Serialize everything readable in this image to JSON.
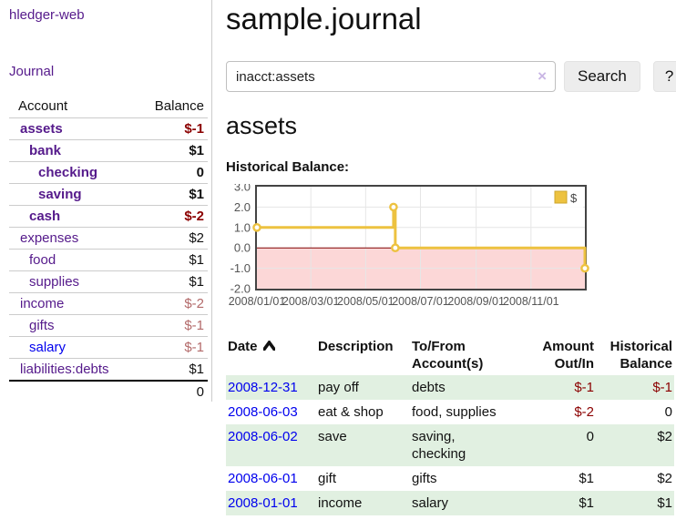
{
  "colors": {
    "link_purple": "#551A8B",
    "link_blue": "#0000EE",
    "negative_strong": "#8B0000",
    "negative_dim": "#B36A6A",
    "row_stripe_green": "#E1F0E1",
    "button_gray": "#EDEDED"
  },
  "sidebar": {
    "app_title": "hledger-web",
    "journal_link": "Journal",
    "accounts_table": {
      "account_header": "Account",
      "balance_header": "Balance",
      "rows": [
        {
          "name": "assets",
          "balance": "$-1"
        },
        {
          "name": "bank",
          "balance": "$1"
        },
        {
          "name": "checking",
          "balance": "0"
        },
        {
          "name": "saving",
          "balance": "$1"
        },
        {
          "name": "cash",
          "balance": "$-2"
        },
        {
          "name": "expenses",
          "balance": "$2"
        },
        {
          "name": "food",
          "balance": "$1"
        },
        {
          "name": "supplies",
          "balance": "$1"
        },
        {
          "name": "income",
          "balance": "$-2"
        },
        {
          "name": "gifts",
          "balance": "$-1"
        },
        {
          "name": "salary",
          "balance": "$-1"
        },
        {
          "name": "liabilities:debts",
          "balance": "$1"
        }
      ],
      "total": "0"
    }
  },
  "main": {
    "page_title": "sample.journal",
    "search": {
      "value": "inacct:assets",
      "clear_icon": "×",
      "search_button": "Search",
      "help_button": "?"
    },
    "account_heading": "assets",
    "chart_title": "Historical Balance:"
  },
  "chart_data": {
    "type": "line",
    "title": "Historical Balance:",
    "style": "steps",
    "series": [
      {
        "name": "$",
        "color": "#EDC240",
        "points": [
          [
            "2008-01-01",
            1
          ],
          [
            "2008-06-01",
            2
          ],
          [
            "2008-06-03",
            0
          ],
          [
            "2008-12-31",
            -1
          ]
        ]
      }
    ],
    "xlim": [
      "2008-01-01",
      "2008-12-31"
    ],
    "ylim": [
      -2,
      3
    ],
    "x_ticks": [
      "2008/01/01",
      "2008/03/01",
      "2008/05/01",
      "2008/07/01",
      "2008/09/01",
      "2008/11/01"
    ],
    "y_ticks": [
      3.0,
      2.0,
      1.0,
      0.0,
      -1.0,
      -2.0
    ],
    "grid": true,
    "legend_position": "top-right",
    "negative_region_fill": "#FCD7D7",
    "zero_line_color": "#800000",
    "border_color": "#444444",
    "grid_color": "#E6E6E6",
    "tick_label_color": "#545454"
  },
  "register": {
    "headers": {
      "date": "Date",
      "description": "Description",
      "tofrom_line1": "To/From",
      "tofrom_line2": "Account(s)",
      "amount_line1": "Amount",
      "amount_line2": "Out/In",
      "balance_line1": "Historical",
      "balance_line2": "Balance"
    },
    "rows": [
      {
        "date": "2008-12-31",
        "description": "pay off",
        "accounts": "debts",
        "amount": "$-1",
        "balance": "$-1"
      },
      {
        "date": "2008-06-03",
        "description": "eat & shop",
        "accounts": "food, supplies",
        "amount": "$-2",
        "balance": "0"
      },
      {
        "date": "2008-06-02",
        "description": "save",
        "accounts": "saving, checking",
        "amount": "0",
        "balance": "$2"
      },
      {
        "date": "2008-06-01",
        "description": "gift",
        "accounts": "gifts",
        "amount": "$1",
        "balance": "$2"
      },
      {
        "date": "2008-01-01",
        "description": "income",
        "accounts": "salary",
        "amount": "$1",
        "balance": "$1"
      }
    ]
  }
}
